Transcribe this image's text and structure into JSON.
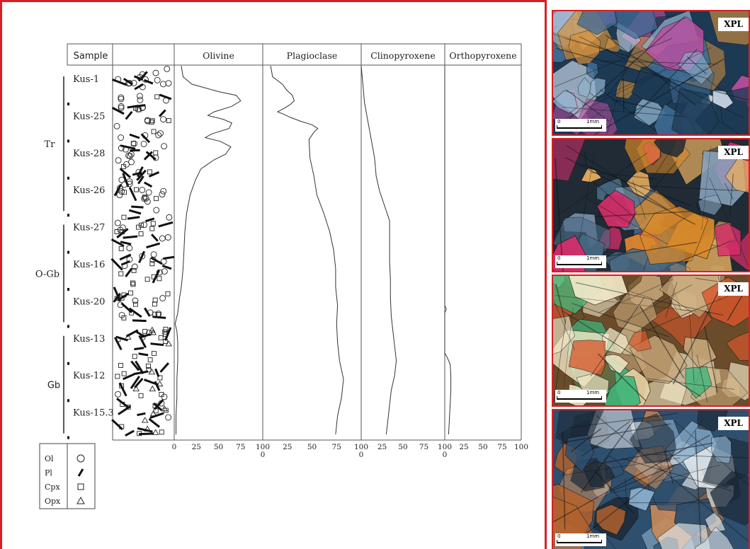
{
  "chart_data": {
    "type": "area",
    "header_sample": "Sample",
    "samples": [
      "Kus-1",
      "Kus-25",
      "Kus-28",
      "Kus-26",
      "Kus-27",
      "Kus-16",
      "Kus-20",
      "Kus-13",
      "Kus-12",
      "Kus-15.3"
    ],
    "rock_units": [
      {
        "label": "Tr",
        "from": "Kus-1",
        "to": "Kus-26"
      },
      {
        "label": "O-Gb",
        "from": "Kus-27",
        "to": "Kus-20"
      },
      {
        "label": "Gb",
        "from": "Kus-13",
        "to": "Kus-15.3"
      }
    ],
    "x_ticks": [
      "0",
      "25",
      "50",
      "75",
      "100"
    ],
    "x_tick_zero_label": "0",
    "xlim": [
      0,
      100
    ],
    "series": [
      {
        "name": "Olivine",
        "profile": [
          [
            0,
            8
          ],
          [
            3,
            10
          ],
          [
            5,
            20
          ],
          [
            7,
            50
          ],
          [
            8,
            70
          ],
          [
            9.5,
            75
          ],
          [
            11,
            65
          ],
          [
            12.5,
            45
          ],
          [
            13.5,
            38
          ],
          [
            14.5,
            55
          ],
          [
            15.5,
            65
          ],
          [
            17,
            62
          ],
          [
            18.5,
            42
          ],
          [
            19.5,
            35
          ],
          [
            20.5,
            52
          ],
          [
            22,
            64
          ],
          [
            24,
            58
          ],
          [
            25.5,
            45
          ],
          [
            27,
            36
          ],
          [
            28,
            30
          ],
          [
            31,
            24
          ],
          [
            35,
            18
          ],
          [
            40,
            14
          ],
          [
            45,
            12
          ],
          [
            50,
            11
          ],
          [
            55,
            10
          ],
          [
            60,
            8
          ],
          [
            63,
            6
          ],
          [
            67,
            4
          ],
          [
            70,
            1
          ],
          [
            72,
            3
          ],
          [
            75,
            4
          ],
          [
            80,
            4
          ],
          [
            85,
            3
          ],
          [
            90,
            3
          ],
          [
            95,
            2
          ],
          [
            100,
            2
          ]
        ]
      },
      {
        "name": "Plagioclase",
        "profile": [
          [
            0,
            8
          ],
          [
            3,
            10
          ],
          [
            5,
            20
          ],
          [
            6.5,
            24
          ],
          [
            8,
            30
          ],
          [
            9.5,
            32
          ],
          [
            10.5,
            28
          ],
          [
            11.5,
            22
          ],
          [
            12.5,
            15
          ],
          [
            13,
            20
          ],
          [
            14,
            28
          ],
          [
            15,
            38
          ],
          [
            16,
            50
          ],
          [
            17,
            56
          ],
          [
            18,
            52
          ],
          [
            20,
            47
          ],
          [
            25,
            48
          ],
          [
            30,
            52
          ],
          [
            35,
            55
          ],
          [
            40,
            62
          ],
          [
            45,
            68
          ],
          [
            50,
            72
          ],
          [
            55,
            74
          ],
          [
            60,
            74
          ],
          [
            65,
            76
          ],
          [
            70,
            75
          ],
          [
            75,
            76
          ],
          [
            80,
            78
          ],
          [
            85,
            82
          ],
          [
            90,
            80
          ],
          [
            95,
            76
          ],
          [
            100,
            74
          ]
        ]
      },
      {
        "name": "Clinopyroxene",
        "profile": [
          [
            0,
            0
          ],
          [
            5,
            2
          ],
          [
            10,
            4
          ],
          [
            15,
            8
          ],
          [
            20,
            12
          ],
          [
            25,
            16
          ],
          [
            30,
            18
          ],
          [
            34,
            22
          ],
          [
            38,
            28
          ],
          [
            42,
            34
          ],
          [
            48,
            34
          ],
          [
            53,
            34
          ],
          [
            58,
            35
          ],
          [
            63,
            35
          ],
          [
            68,
            36
          ],
          [
            72,
            38
          ],
          [
            76,
            40
          ],
          [
            80,
            42
          ],
          [
            84,
            40
          ],
          [
            88,
            36
          ],
          [
            92,
            34
          ],
          [
            96,
            32
          ],
          [
            100,
            30
          ]
        ]
      },
      {
        "name": "Orthopyroxene",
        "profile": [
          [
            0,
            0
          ],
          [
            65,
            0
          ],
          [
            66,
            2
          ],
          [
            67,
            0
          ],
          [
            78,
            0
          ],
          [
            79,
            3
          ],
          [
            81,
            7
          ],
          [
            84,
            8
          ],
          [
            88,
            8
          ],
          [
            92,
            7
          ],
          [
            96,
            6
          ],
          [
            100,
            5
          ]
        ]
      }
    ],
    "legend": [
      {
        "abbr": "Ol",
        "symbol": "circle"
      },
      {
        "abbr": "Pl",
        "symbol": "bar"
      },
      {
        "abbr": "Cpx",
        "symbol": "square"
      },
      {
        "abbr": "Opx",
        "symbol": "triangle"
      }
    ]
  },
  "photos": [
    {
      "label": "XPL",
      "scale_zero": "0",
      "scale_unit": "1mm",
      "palette": [
        "#1d3a55",
        "#3f6d96",
        "#8fb3cf",
        "#c9d7e6",
        "#d4913e",
        "#b84fa0"
      ]
    },
    {
      "label": "XPL",
      "scale_zero": "0",
      "scale_unit": "1mm",
      "palette": [
        "#202b35",
        "#4a6a85",
        "#8aa5bf",
        "#d98a2a",
        "#e9b060",
        "#d62e6a"
      ]
    },
    {
      "label": "XPL",
      "scale_zero": "0",
      "scale_unit": "1mm",
      "palette": [
        "#6b4c2a",
        "#c8a87a",
        "#e7d3a5",
        "#d9582c",
        "#3fb57a",
        "#f3e9c8"
      ]
    },
    {
      "label": "XPL",
      "scale_zero": "0",
      "scale_unit": "1mm",
      "palette": [
        "#2f4f6e",
        "#8db1cf",
        "#e0e6ea",
        "#b8632b",
        "#1c2a38",
        "#c78a5a"
      ]
    }
  ]
}
